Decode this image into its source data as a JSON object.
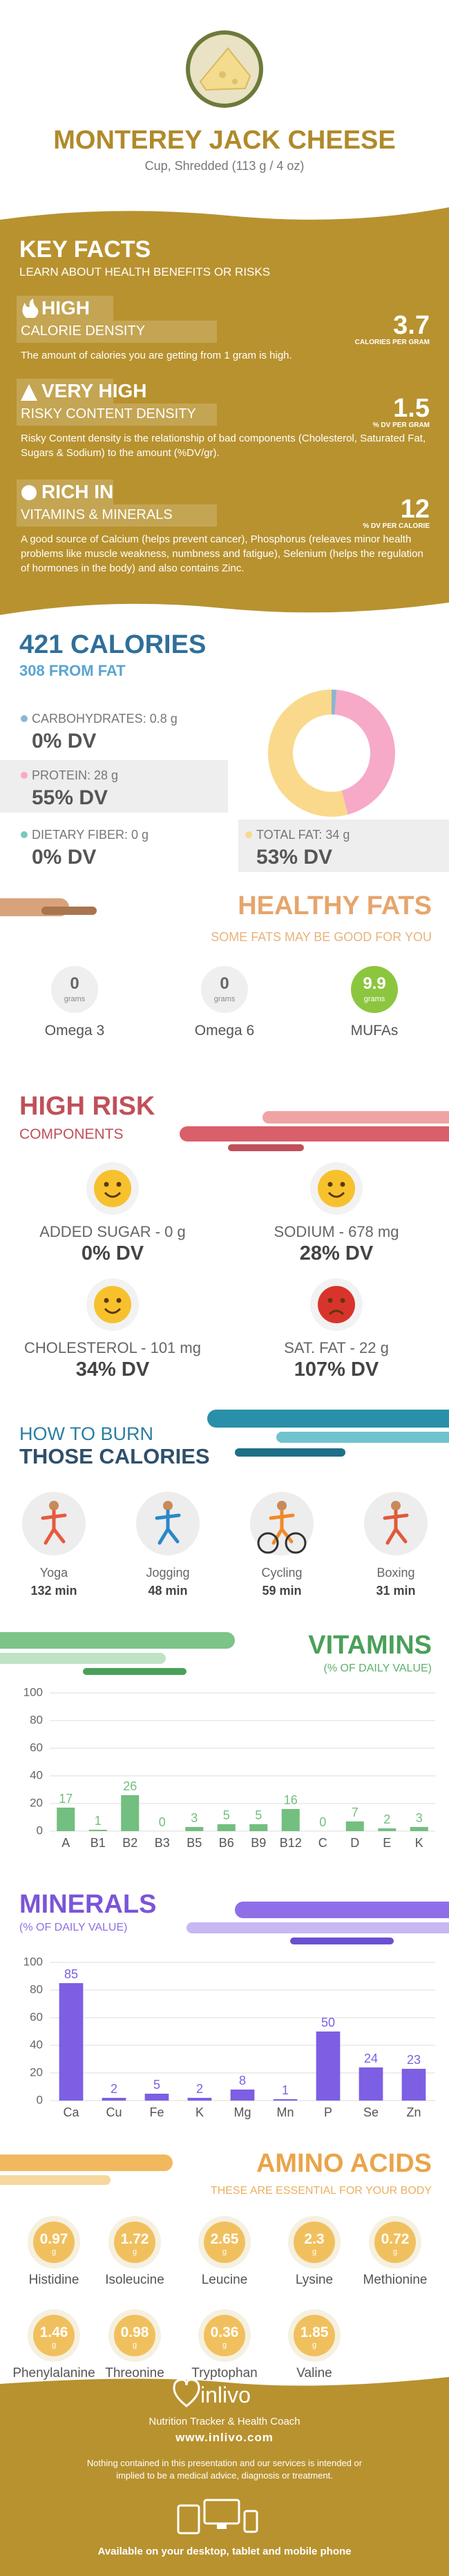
{
  "header": {
    "title": "MONTEREY JACK CHEESE",
    "subtitle": "Cup, Shredded (113 g / 4 oz)"
  },
  "key_facts": {
    "title": "KEY FACTS",
    "subtitle": "LEARN ABOUT HEALTH BENEFITS OR RISKS",
    "items": [
      {
        "level": "HIGH",
        "label": "CALORIE DENSITY",
        "value": 3.7,
        "unit": "CALORIES PER GRAM",
        "description": "The amount of calories you are getting from 1 gram is high."
      },
      {
        "level": "VERY HIGH",
        "label": "RISKY CONTENT DENSITY",
        "value": 1.5,
        "unit": "% DV PER GRAM",
        "description": "Risky Content density is the relationship of bad components (Cholesterol, Saturated Fat, Sugars & Sodium) to the amount (%DV/gr)."
      },
      {
        "level": "RICH IN",
        "label": "VITAMINS & MINERALS",
        "value": 12,
        "unit": "% DV PER CALORIE",
        "description": "A good source of Calcium (helps prevent cancer), Phosphorus (releaves minor health problems like muscle weakness, numbness and fatigue), Selenium (helps the regulation of hormones in the body) and also contains Zinc."
      }
    ]
  },
  "calories": {
    "title": "421 CALORIES",
    "subtitle": "308 FROM FAT",
    "daily_values": [
      "0% DV",
      "55% DV",
      "0% DV",
      "53% DV"
    ]
  },
  "chart_data": [
    {
      "type": "donut",
      "categories": [
        "CARBOHYDRATES: 0.8 g",
        "PROTEIN: 28 g",
        "DIETARY FIBER: 0 g",
        "TOTAL FAT: 34 g"
      ],
      "values": [
        0.8,
        28,
        0,
        34
      ],
      "colors": [
        "#8fb4d0",
        "#f7a9c8",
        "#7cc8b8",
        "#fad98c"
      ]
    },
    {
      "type": "bar",
      "title": "VITAMINS",
      "subtitle": "(% OF DAILY VALUE)",
      "categories": [
        "A",
        "B1",
        "B2",
        "B3",
        "B5",
        "B6",
        "B9",
        "B12",
        "C",
        "D",
        "E",
        "K"
      ],
      "values": [
        17,
        1,
        26,
        0,
        3,
        5,
        5,
        16,
        0,
        7,
        2,
        3
      ],
      "color": "#72bf7f",
      "ylim": [
        0,
        100
      ],
      "yticks": [
        0,
        20,
        40,
        60,
        80,
        100
      ],
      "grid": true
    },
    {
      "type": "bar",
      "title": "MINERALS",
      "subtitle": "(% OF DAILY VALUE)",
      "categories": [
        "Ca",
        "Cu",
        "Fe",
        "K",
        "Mg",
        "Mn",
        "P",
        "Se",
        "Zn"
      ],
      "values": [
        85,
        2,
        5,
        2,
        8,
        1,
        50,
        24,
        23
      ],
      "color": "#7d5fe3",
      "ylim": [
        0,
        100
      ],
      "yticks": [
        0,
        20,
        40,
        60,
        80,
        100
      ],
      "grid": true
    }
  ],
  "healthy_fats": {
    "title": "HEALTHY FATS",
    "subtitle": "SOME FATS MAY BE GOOD FOR YOU",
    "items": [
      {
        "value": 0,
        "unit": "grams",
        "name": "Omega 3"
      },
      {
        "value": 0,
        "unit": "grams",
        "name": "Omega 6"
      },
      {
        "value": 9.9,
        "unit": "grams",
        "name": "MUFAs"
      }
    ]
  },
  "high_risk": {
    "title": "HIGH RISK",
    "subtitle": "COMPONENTS",
    "items": [
      {
        "label": "ADDED SUGAR - 0 g",
        "dv": "0% DV"
      },
      {
        "label": "SODIUM - 678 mg",
        "dv": "28% DV"
      },
      {
        "label": "CHOLESTEROL - 101 mg",
        "dv": "34% DV"
      },
      {
        "label": "SAT. FAT - 22 g",
        "dv": "107% DV"
      }
    ]
  },
  "burn": {
    "title": "HOW TO BURN",
    "subtitle": "THOSE CALORIES",
    "items": [
      {
        "name": "Yoga",
        "time": "132 min"
      },
      {
        "name": "Jogging",
        "time": "48 min"
      },
      {
        "name": "Cycling",
        "time": "59 min"
      },
      {
        "name": "Boxing",
        "time": "31 min"
      }
    ]
  },
  "amino_acids": {
    "title": "AMINO ACIDS",
    "subtitle": "THESE ARE ESSENTIAL FOR YOUR BODY",
    "unit": "g",
    "items": [
      {
        "name": "Histidine",
        "value": 0.97
      },
      {
        "name": "Isoleucine",
        "value": 1.72
      },
      {
        "name": "Leucine",
        "value": 2.65
      },
      {
        "name": "Lysine",
        "value": 2.3
      },
      {
        "name": "Methionine",
        "value": 0.72
      },
      {
        "name": "Phenylalanine",
        "value": 1.46
      },
      {
        "name": "Threonine",
        "value": 0.98
      },
      {
        "name": "Tryptophan",
        "value": 0.36
      },
      {
        "name": "Valine",
        "value": 1.85
      }
    ]
  },
  "footer": {
    "brand": "inlivo",
    "tagline": "Nutrition Tracker & Health Coach",
    "url": "www.inlivo.com",
    "disclaimer": "Nothing contained in this presentation and our services is intended or implied to be a medical advice, diagnosis or treatment.",
    "availability": "Available on your desktop, tablet and mobile phone"
  }
}
